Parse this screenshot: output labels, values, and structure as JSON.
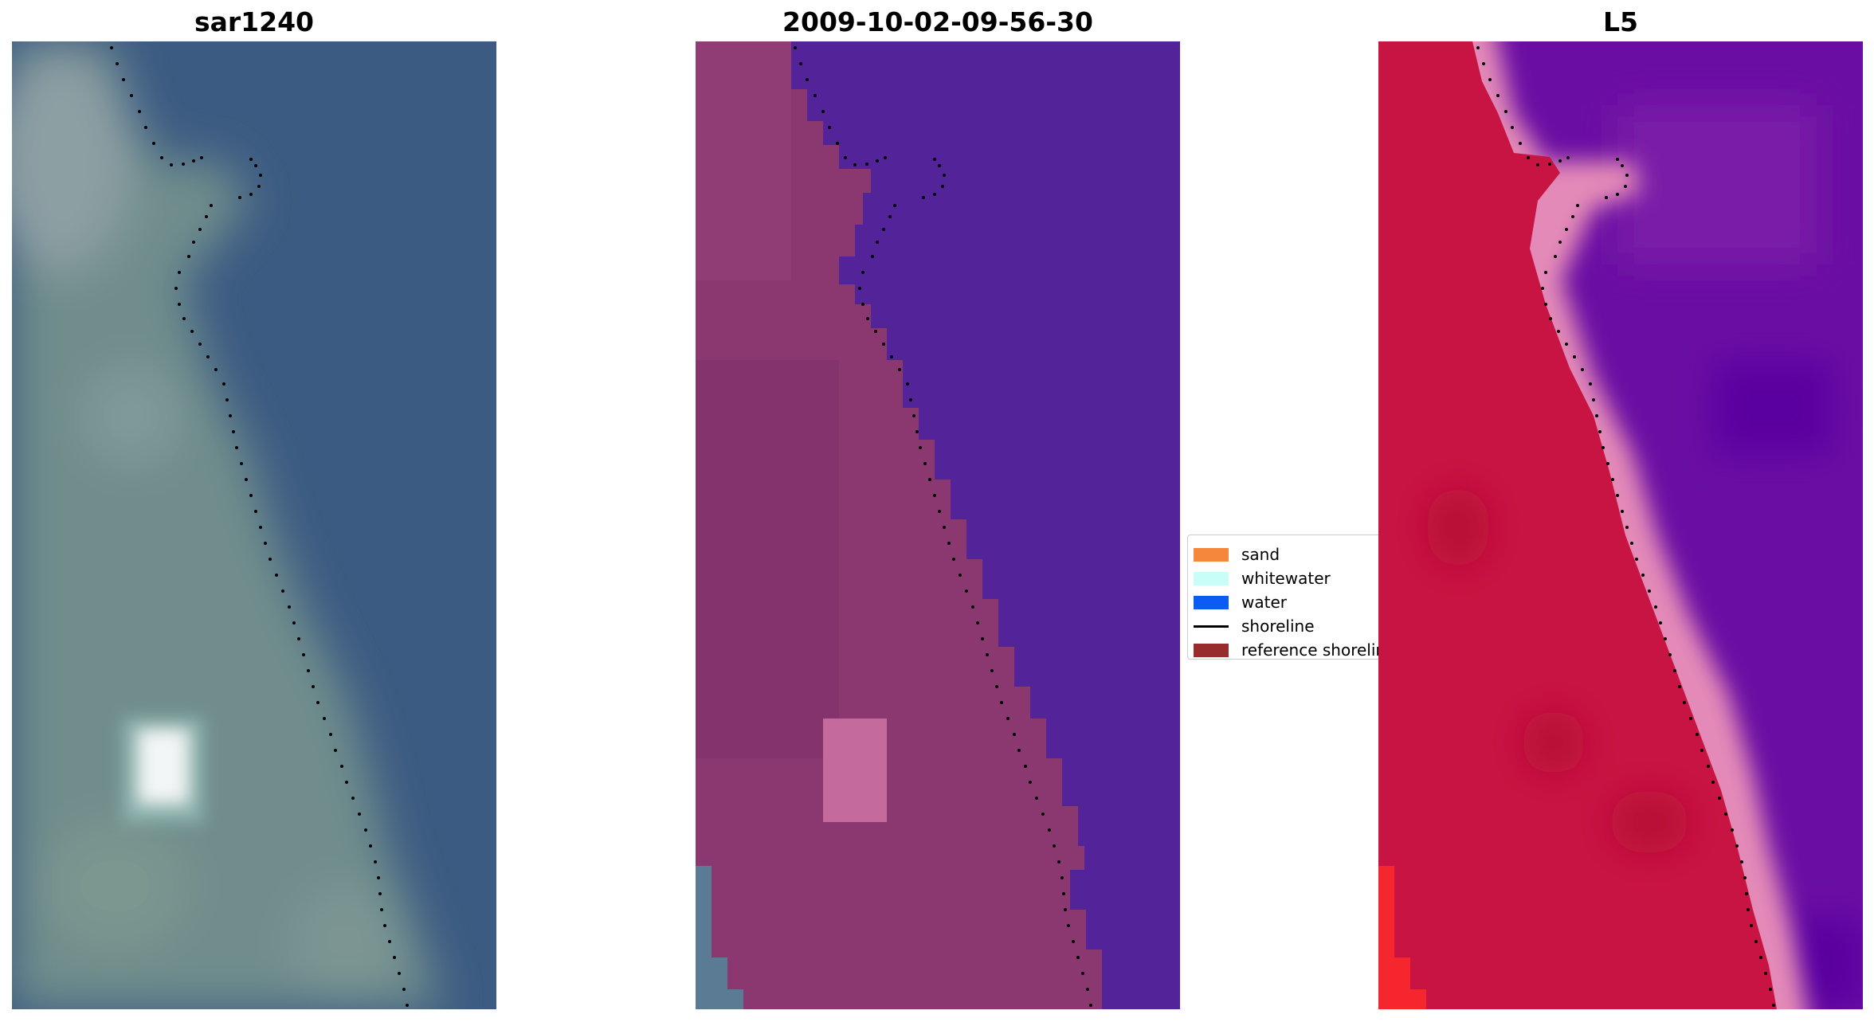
{
  "panels": [
    {
      "title": "sar1240",
      "kind": "rgb-image"
    },
    {
      "title": "2009-10-02-09-56-30",
      "kind": "classified-image"
    },
    {
      "title": "L5",
      "kind": "index-image"
    }
  ],
  "legend": {
    "items": [
      {
        "label": "sand",
        "type": "patch",
        "color": "#f5873c"
      },
      {
        "label": "whitewater",
        "type": "patch",
        "color": "#c9fdf8"
      },
      {
        "label": "water",
        "type": "patch",
        "color": "#0b5cf2"
      },
      {
        "label": "shoreline",
        "type": "line",
        "color": "#000000"
      },
      {
        "label": "reference shoreline",
        "type": "patch",
        "color": "#962c2c"
      }
    ]
  },
  "colors": {
    "sar_water": "#3c5b82",
    "sar_land": "#6f8d8c",
    "classified_water": "#53239a",
    "classified_land": "#8b3770",
    "index_water": "#6a0ea3",
    "index_land": "#c81443",
    "shoreline_dots": "#000000"
  }
}
